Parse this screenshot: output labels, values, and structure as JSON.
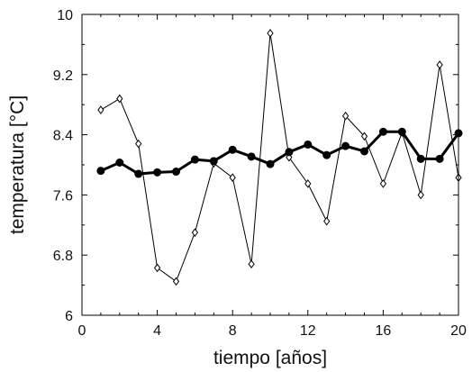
{
  "chart_data": {
    "type": "line",
    "xlabel": "tiempo [años]",
    "ylabel": "temperatura [°C]",
    "xlim": [
      0,
      20
    ],
    "ylim": [
      6,
      10
    ],
    "xticks": [
      0,
      4,
      8,
      12,
      16,
      20
    ],
    "yticks": [
      6,
      6.8,
      7.6,
      8.4,
      9.2,
      10
    ],
    "ytick_labels": [
      "6",
      "6.8",
      "7.6",
      "8.4",
      "9.2",
      "10"
    ],
    "grid": false,
    "legend": "none",
    "x": [
      1,
      2,
      3,
      4,
      5,
      6,
      7,
      8,
      9,
      10,
      11,
      12,
      13,
      14,
      15,
      16,
      17,
      18,
      19,
      20
    ],
    "series": [
      {
        "marker": "open-diamond",
        "line_width": "thin",
        "color": "#000000",
        "values": [
          8.73,
          8.88,
          8.28,
          6.63,
          6.45,
          7.1,
          8.02,
          7.83,
          6.68,
          9.75,
          8.1,
          7.75,
          7.25,
          8.65,
          8.38,
          7.75,
          8.43,
          7.6,
          9.33,
          7.83
        ]
      },
      {
        "marker": "filled-circle",
        "line_width": "thick",
        "color": "#000000",
        "values": [
          7.92,
          8.03,
          7.88,
          7.9,
          7.91,
          8.07,
          8.05,
          8.2,
          8.11,
          8.01,
          8.17,
          8.27,
          8.13,
          8.25,
          8.18,
          8.44,
          8.44,
          8.08,
          8.08,
          8.42
        ]
      }
    ]
  }
}
